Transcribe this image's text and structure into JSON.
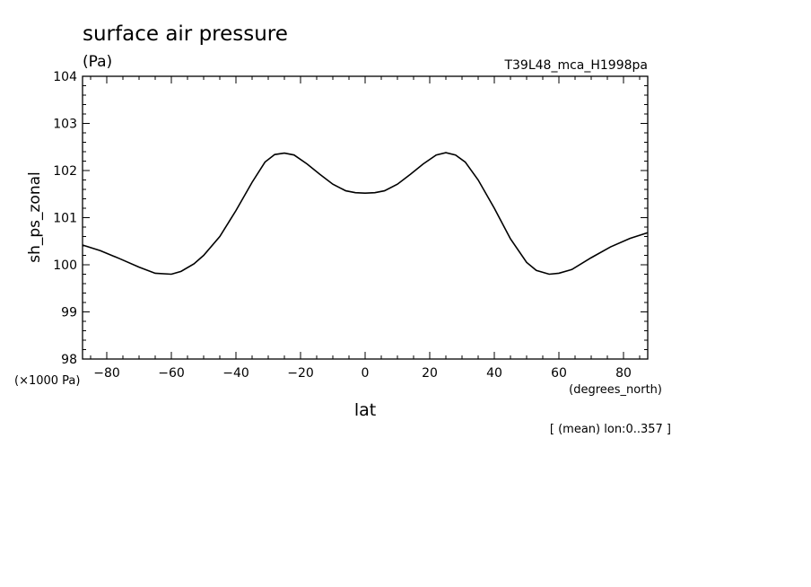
{
  "chart_data": {
    "type": "line",
    "title": "surface air pressure",
    "units": "(Pa)",
    "run_label": "T39L48_mca_H1998pa",
    "ylabel": "sh_ps_zonal",
    "y_scale_note": "(×1000 Pa)",
    "xlabel": "lat",
    "x_units": "(degrees_north)",
    "mean_note": "[ (mean) lon:0..357 ]",
    "xlim": [
      -87.5,
      87.5
    ],
    "ylim": [
      98,
      104
    ],
    "x_ticks": [
      "-80",
      "-60",
      "-40",
      "-20",
      "0",
      "20",
      "40",
      "60",
      "80"
    ],
    "x_tick_values": [
      -80,
      -60,
      -40,
      -20,
      0,
      20,
      40,
      60,
      80
    ],
    "y_ticks": [
      "98",
      "99",
      "100",
      "101",
      "102",
      "103",
      "104"
    ],
    "y_tick_values": [
      98,
      99,
      100,
      101,
      102,
      103,
      104
    ],
    "series": [
      {
        "x": [
          -87.5,
          -82,
          -76,
          -70,
          -65,
          -60,
          -57,
          -53,
          -50,
          -45,
          -40,
          -35,
          -31,
          -28,
          -25,
          -22,
          -18,
          -14,
          -10,
          -6,
          -3,
          0,
          3,
          6,
          10,
          14,
          18,
          22,
          25,
          28,
          31,
          35,
          40,
          45,
          50,
          53,
          57,
          60,
          64,
          70,
          76,
          82,
          87.5
        ],
        "y": [
          100.42,
          100.3,
          100.13,
          99.95,
          99.82,
          99.8,
          99.86,
          100.02,
          100.2,
          100.6,
          101.15,
          101.75,
          102.18,
          102.34,
          102.37,
          102.33,
          102.14,
          101.92,
          101.71,
          101.57,
          101.53,
          101.52,
          101.53,
          101.57,
          101.71,
          101.92,
          102.14,
          102.33,
          102.38,
          102.33,
          102.18,
          101.8,
          101.2,
          100.55,
          100.05,
          99.88,
          99.8,
          99.82,
          99.9,
          100.15,
          100.38,
          100.56,
          100.68
        ]
      }
    ],
    "grid": false
  }
}
